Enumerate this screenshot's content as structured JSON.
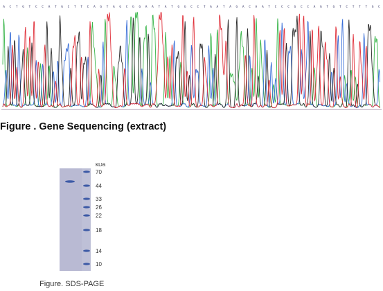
{
  "figure1": {
    "caption": "Figure . Gene Sequencing (extract)",
    "base_colors": {
      "A": "#39b54a",
      "C": "#3a6fd8",
      "G": "#2b2b2b",
      "T": "#e0303a"
    }
  },
  "figure2": {
    "caption": "Figure. SDS-PAGE",
    "unit": "kDa",
    "ladder_kda": [
      "70",
      "44",
      "33",
      "26",
      "22",
      "18",
      "14",
      "10"
    ],
    "gel_color": "#b9bad3",
    "band_color": "#3d5aa6"
  }
}
